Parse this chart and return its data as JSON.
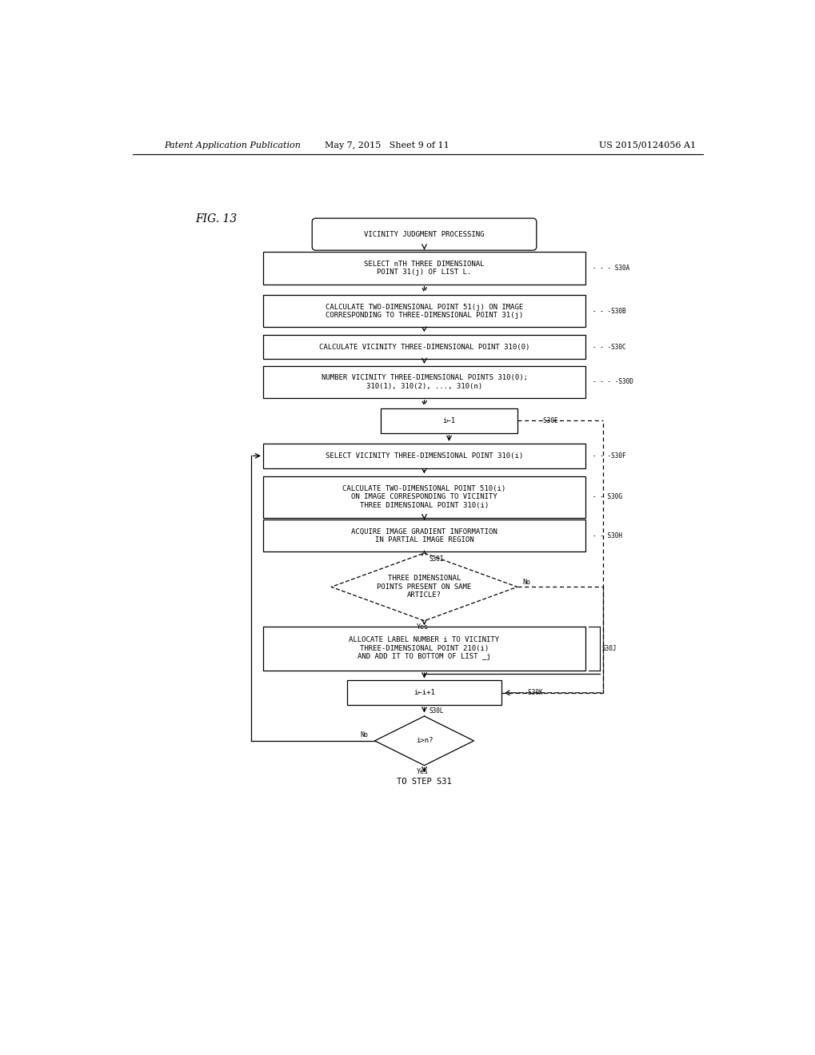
{
  "title_left": "Patent Application Publication",
  "title_mid": "May 7, 2015   Sheet 9 of 11",
  "title_right": "US 2015/0124056 A1",
  "fig_label": "FIG. 13",
  "start_label": "VICINITY JUDGMENT PROCESSING",
  "s30a_text": "SELECT nTH THREE DIMENSIONAL\nPOINT 31(j) OF LIST L.",
  "s30b_text": "CALCULATE TWO-DIMENSIONAL POINT 51(j) ON IMAGE\nCORRESPONDING TO THREE-DIMENSIONAL POINT 31(j)",
  "s30c_text": "CALCULATE VICINITY THREE-DIMENSIONAL POINT 310(0)",
  "s30d_text": "NUMBER VICINITY THREE-DIMENSIONAL POINTS 310(0);\n310(1), 310(2), ..., 310(n)",
  "s30e_text": "i←1",
  "s30f_text": "SELECT VICINITY THREE-DIMENSIONAL POINT 310(i)",
  "s30g_text": "CALCULATE TWO-DIMENSIONAL POINT 510(i)\nON IMAGE CORRESPONDING TO VICINITY\nTHREE DIMENSIONAL POINT 310(i)",
  "s30h_text": "ACQUIRE IMAGE GRADIENT INFORMATION\nIN PARTIAL IMAGE REGION",
  "s30i_text": "THREE DIMENSIONAL\nPOINTS PRESENT ON SAME\nARTICLE?",
  "s30j_text": "ALLOCATE LABEL NUMBER i TO VICINITY\nTHREE-DIMENSIONAL POINT 210(i)\nAND ADD IT TO BOTTOM OF LIST _j",
  "s30k_text": "i←i+1",
  "s30l_text": "i>n?",
  "end_text": "TO STEP S31",
  "bg_color": "#ffffff",
  "text_color": "#000000",
  "font_size": 6.5,
  "header_font_size": 8
}
